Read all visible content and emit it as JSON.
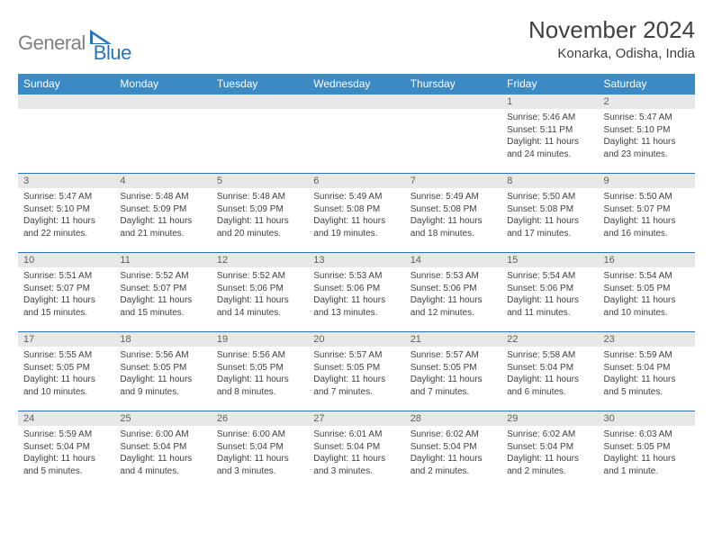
{
  "brand": {
    "part1": "General",
    "part2": "Blue"
  },
  "title": "November 2024",
  "location": "Konarka, Odisha, India",
  "colors": {
    "header_bg": "#3b8ac4",
    "header_text": "#ffffff",
    "daynum_bg": "#e8e8e8",
    "daynum_text": "#606060",
    "border": "#2a73b8",
    "body_text": "#404040",
    "logo_gray": "#808080",
    "logo_blue": "#2a73b8",
    "background": "#ffffff"
  },
  "typography": {
    "title_fontsize": 26,
    "location_fontsize": 15,
    "header_fontsize": 12,
    "daynum_fontsize": 11,
    "detail_fontsize": 10
  },
  "day_names": [
    "Sunday",
    "Monday",
    "Tuesday",
    "Wednesday",
    "Thursday",
    "Friday",
    "Saturday"
  ],
  "weeks": [
    [
      {
        "n": "",
        "sr": "",
        "ss": "",
        "dl": ""
      },
      {
        "n": "",
        "sr": "",
        "ss": "",
        "dl": ""
      },
      {
        "n": "",
        "sr": "",
        "ss": "",
        "dl": ""
      },
      {
        "n": "",
        "sr": "",
        "ss": "",
        "dl": ""
      },
      {
        "n": "",
        "sr": "",
        "ss": "",
        "dl": ""
      },
      {
        "n": "1",
        "sr": "Sunrise: 5:46 AM",
        "ss": "Sunset: 5:11 PM",
        "dl": "Daylight: 11 hours and 24 minutes."
      },
      {
        "n": "2",
        "sr": "Sunrise: 5:47 AM",
        "ss": "Sunset: 5:10 PM",
        "dl": "Daylight: 11 hours and 23 minutes."
      }
    ],
    [
      {
        "n": "3",
        "sr": "Sunrise: 5:47 AM",
        "ss": "Sunset: 5:10 PM",
        "dl": "Daylight: 11 hours and 22 minutes."
      },
      {
        "n": "4",
        "sr": "Sunrise: 5:48 AM",
        "ss": "Sunset: 5:09 PM",
        "dl": "Daylight: 11 hours and 21 minutes."
      },
      {
        "n": "5",
        "sr": "Sunrise: 5:48 AM",
        "ss": "Sunset: 5:09 PM",
        "dl": "Daylight: 11 hours and 20 minutes."
      },
      {
        "n": "6",
        "sr": "Sunrise: 5:49 AM",
        "ss": "Sunset: 5:08 PM",
        "dl": "Daylight: 11 hours and 19 minutes."
      },
      {
        "n": "7",
        "sr": "Sunrise: 5:49 AM",
        "ss": "Sunset: 5:08 PM",
        "dl": "Daylight: 11 hours and 18 minutes."
      },
      {
        "n": "8",
        "sr": "Sunrise: 5:50 AM",
        "ss": "Sunset: 5:08 PM",
        "dl": "Daylight: 11 hours and 17 minutes."
      },
      {
        "n": "9",
        "sr": "Sunrise: 5:50 AM",
        "ss": "Sunset: 5:07 PM",
        "dl": "Daylight: 11 hours and 16 minutes."
      }
    ],
    [
      {
        "n": "10",
        "sr": "Sunrise: 5:51 AM",
        "ss": "Sunset: 5:07 PM",
        "dl": "Daylight: 11 hours and 15 minutes."
      },
      {
        "n": "11",
        "sr": "Sunrise: 5:52 AM",
        "ss": "Sunset: 5:07 PM",
        "dl": "Daylight: 11 hours and 15 minutes."
      },
      {
        "n": "12",
        "sr": "Sunrise: 5:52 AM",
        "ss": "Sunset: 5:06 PM",
        "dl": "Daylight: 11 hours and 14 minutes."
      },
      {
        "n": "13",
        "sr": "Sunrise: 5:53 AM",
        "ss": "Sunset: 5:06 PM",
        "dl": "Daylight: 11 hours and 13 minutes."
      },
      {
        "n": "14",
        "sr": "Sunrise: 5:53 AM",
        "ss": "Sunset: 5:06 PM",
        "dl": "Daylight: 11 hours and 12 minutes."
      },
      {
        "n": "15",
        "sr": "Sunrise: 5:54 AM",
        "ss": "Sunset: 5:06 PM",
        "dl": "Daylight: 11 hours and 11 minutes."
      },
      {
        "n": "16",
        "sr": "Sunrise: 5:54 AM",
        "ss": "Sunset: 5:05 PM",
        "dl": "Daylight: 11 hours and 10 minutes."
      }
    ],
    [
      {
        "n": "17",
        "sr": "Sunrise: 5:55 AM",
        "ss": "Sunset: 5:05 PM",
        "dl": "Daylight: 11 hours and 10 minutes."
      },
      {
        "n": "18",
        "sr": "Sunrise: 5:56 AM",
        "ss": "Sunset: 5:05 PM",
        "dl": "Daylight: 11 hours and 9 minutes."
      },
      {
        "n": "19",
        "sr": "Sunrise: 5:56 AM",
        "ss": "Sunset: 5:05 PM",
        "dl": "Daylight: 11 hours and 8 minutes."
      },
      {
        "n": "20",
        "sr": "Sunrise: 5:57 AM",
        "ss": "Sunset: 5:05 PM",
        "dl": "Daylight: 11 hours and 7 minutes."
      },
      {
        "n": "21",
        "sr": "Sunrise: 5:57 AM",
        "ss": "Sunset: 5:05 PM",
        "dl": "Daylight: 11 hours and 7 minutes."
      },
      {
        "n": "22",
        "sr": "Sunrise: 5:58 AM",
        "ss": "Sunset: 5:04 PM",
        "dl": "Daylight: 11 hours and 6 minutes."
      },
      {
        "n": "23",
        "sr": "Sunrise: 5:59 AM",
        "ss": "Sunset: 5:04 PM",
        "dl": "Daylight: 11 hours and 5 minutes."
      }
    ],
    [
      {
        "n": "24",
        "sr": "Sunrise: 5:59 AM",
        "ss": "Sunset: 5:04 PM",
        "dl": "Daylight: 11 hours and 5 minutes."
      },
      {
        "n": "25",
        "sr": "Sunrise: 6:00 AM",
        "ss": "Sunset: 5:04 PM",
        "dl": "Daylight: 11 hours and 4 minutes."
      },
      {
        "n": "26",
        "sr": "Sunrise: 6:00 AM",
        "ss": "Sunset: 5:04 PM",
        "dl": "Daylight: 11 hours and 3 minutes."
      },
      {
        "n": "27",
        "sr": "Sunrise: 6:01 AM",
        "ss": "Sunset: 5:04 PM",
        "dl": "Daylight: 11 hours and 3 minutes."
      },
      {
        "n": "28",
        "sr": "Sunrise: 6:02 AM",
        "ss": "Sunset: 5:04 PM",
        "dl": "Daylight: 11 hours and 2 minutes."
      },
      {
        "n": "29",
        "sr": "Sunrise: 6:02 AM",
        "ss": "Sunset: 5:04 PM",
        "dl": "Daylight: 11 hours and 2 minutes."
      },
      {
        "n": "30",
        "sr": "Sunrise: 6:03 AM",
        "ss": "Sunset: 5:05 PM",
        "dl": "Daylight: 11 hours and 1 minute."
      }
    ]
  ]
}
